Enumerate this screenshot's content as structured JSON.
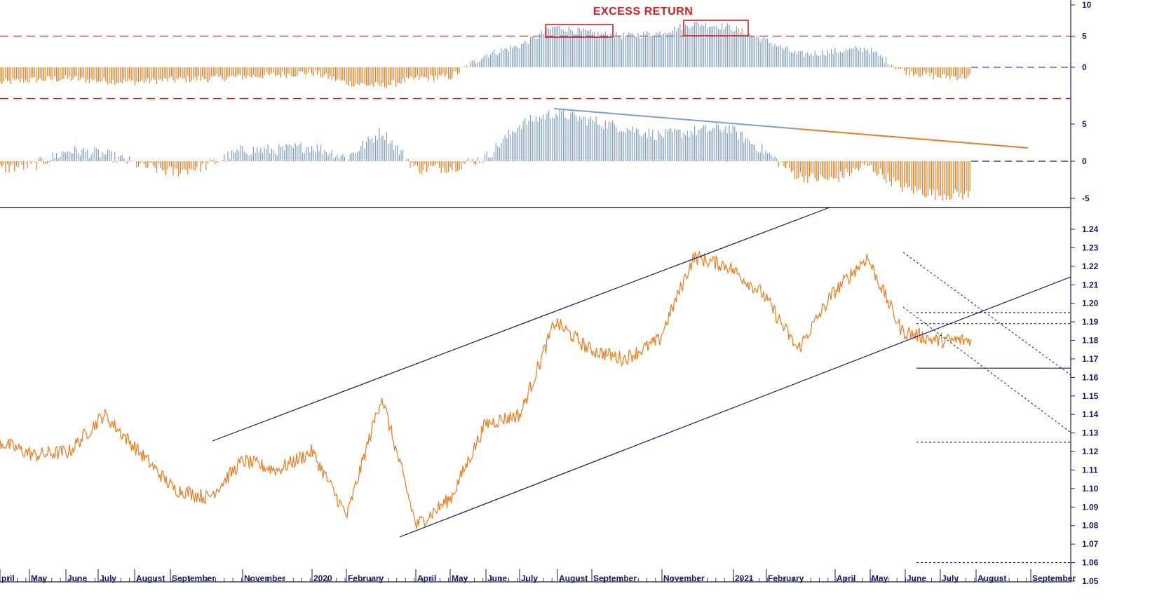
{
  "chart_data": [
    {
      "type": "bar",
      "panel": "excess-return",
      "title": "EXCESS RETURN",
      "yticks": [
        10,
        5,
        0
      ],
      "ylim": [
        -5,
        10
      ],
      "threshold_lines": [
        5,
        -5
      ],
      "highlight_boxes": [
        "August–September 2020",
        "December 2020–January 2021"
      ],
      "positive_color": "#7f9fc9",
      "negative_color": "#f07a1a",
      "series": [
        {
          "x": [
            "Apr 2019",
            "May 2019",
            "Jun 2019",
            "Jul 2019",
            "Aug 2019",
            "Sep 2019",
            "Oct 2019",
            "Nov 2019",
            "Dec 2019",
            "Jan 2020",
            "Feb 2020",
            "Mar 2020",
            "Apr 2020",
            "May 2020",
            "Jun 2020",
            "Jul 2020",
            "Aug 2020",
            "Sep 2020",
            "Oct 2020",
            "Nov 2020",
            "Dec 2020",
            "Jan 2021",
            "Feb 2021",
            "Mar 2021",
            "Apr 2021",
            "May 2021",
            "Jun 2021",
            "Jul 2021"
          ],
          "values": [
            -2.5,
            -2.0,
            -1.8,
            -2.2,
            -2.3,
            -2.0,
            -1.8,
            -1.5,
            -1.2,
            -0.8,
            -2.5,
            -3.0,
            -1.8,
            -1.5,
            2.0,
            3.5,
            6.5,
            5.5,
            5.0,
            5.5,
            7.0,
            6.5,
            4.5,
            2.0,
            2.5,
            3.0,
            -0.5,
            -1.5
          ]
        }
      ]
    },
    {
      "type": "bar",
      "panel": "momentum",
      "yticks": [
        5,
        0,
        -5
      ],
      "ylim": [
        -6,
        8
      ],
      "trendline": {
        "from": "Aug 2020",
        "to": "Sep 2021"
      },
      "positive_color": "#7f9fc9",
      "negative_color": "#f07a1a",
      "series": [
        {
          "x": [
            "Apr 2019",
            "May 2019",
            "Jun 2019",
            "Jul 2019",
            "Aug 2019",
            "Sep 2019",
            "Oct 2019",
            "Nov 2019",
            "Dec 2019",
            "Jan 2020",
            "Feb 2020",
            "Mar 2020",
            "Apr 2020",
            "May 2020",
            "Jun 2020",
            "Jul 2020",
            "Aug 2020",
            "Sep 2020",
            "Oct 2020",
            "Nov 2020",
            "Dec 2020",
            "Jan 2021",
            "Feb 2021",
            "Mar 2021",
            "Apr 2021",
            "May 2021",
            "Jun 2021",
            "Jul 2021"
          ],
          "values": [
            -1.0,
            -0.5,
            1.5,
            1.0,
            -0.5,
            -1.5,
            -0.5,
            1.5,
            1.5,
            2.0,
            0.5,
            4.0,
            -1.0,
            -0.8,
            0.5,
            5.0,
            6.5,
            5.5,
            4.5,
            3.5,
            4.0,
            4.5,
            1.5,
            -2.0,
            -2.5,
            -0.5,
            -3.5,
            -4.5
          ]
        }
      ]
    },
    {
      "type": "line",
      "panel": "price",
      "yticks": [
        1.24,
        1.23,
        1.22,
        1.21,
        1.2,
        1.19,
        1.18,
        1.17,
        1.16,
        1.15,
        1.14,
        1.13,
        1.12,
        1.11,
        1.1,
        1.09,
        1.08,
        1.07,
        1.06,
        1.05
      ],
      "ylim": [
        1.05,
        1.245
      ],
      "line_color": "#f07a1a",
      "x": [
        "Apr 2019",
        "May 2019",
        "Jun 2019",
        "Jul 2019",
        "Aug 2019",
        "Sep 2019",
        "Oct 2019",
        "Nov 2019",
        "Dec 2019",
        "Jan 2020",
        "Feb 2020",
        "Mar 2020",
        "Apr 2020",
        "May 2020",
        "Jun 2020",
        "Jul 2020",
        "Aug 2020",
        "Sep 2020",
        "Oct 2020",
        "Nov 2020",
        "Dec 2020",
        "Jan 2021",
        "Feb 2021",
        "Mar 2021",
        "Apr 2021",
        "May 2021",
        "Jun 2021",
        "Jul 2021"
      ],
      "y": [
        1.125,
        1.118,
        1.12,
        1.14,
        1.12,
        1.1,
        1.095,
        1.115,
        1.11,
        1.12,
        1.085,
        1.15,
        1.08,
        1.095,
        1.135,
        1.14,
        1.19,
        1.175,
        1.17,
        1.18,
        1.225,
        1.22,
        1.205,
        1.175,
        1.205,
        1.225,
        1.185,
        1.18
      ],
      "annotations": {
        "channel": "rising channel from Nov 2019 / Mar 2020",
        "horizontal_levels": [
          1.195,
          1.189,
          1.165,
          1.125,
          1.06
        ]
      }
    }
  ],
  "x_axis_labels": [
    "pril",
    "May",
    "June",
    "July",
    "August",
    "September",
    "November",
    "2020",
    "February",
    "April",
    "May",
    "June",
    "July",
    "August",
    "September",
    "November",
    "2021",
    "February",
    "April",
    "May",
    "June",
    "July",
    "August",
    "September"
  ]
}
